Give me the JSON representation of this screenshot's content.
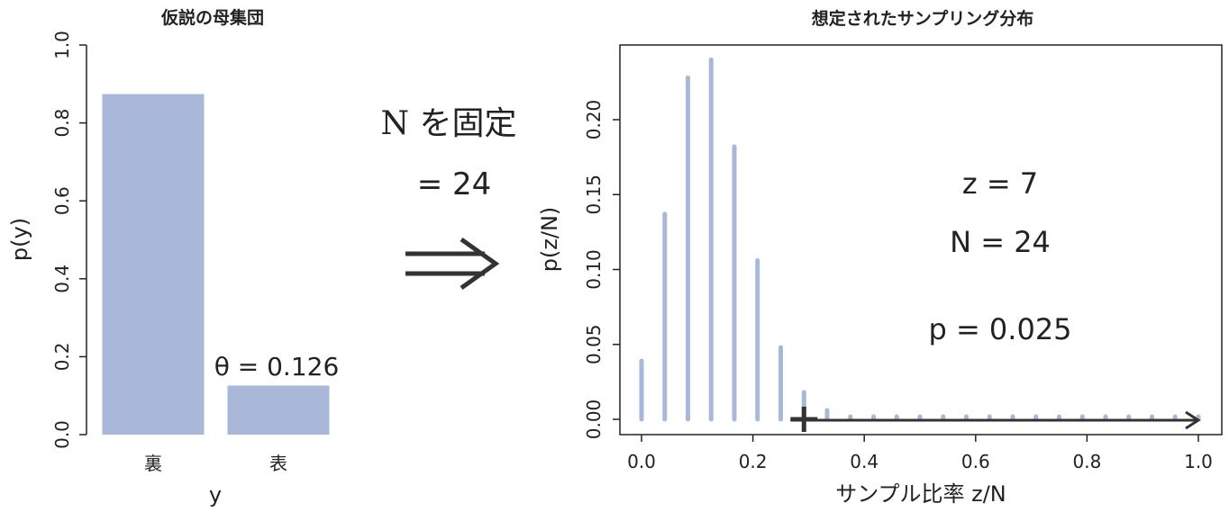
{
  "middle": {
    "line1": "N を固定",
    "line2": "= 24",
    "arrow_glyph": "⟹"
  },
  "chart_data": [
    {
      "type": "bar",
      "title": "仮説の母集団",
      "xlabel": "y",
      "ylabel": "p(y)",
      "categories": [
        "裏",
        "表"
      ],
      "values": [
        0.874,
        0.126
      ],
      "ylim": [
        0,
        1
      ],
      "yticks": [
        "0.0",
        "0.2",
        "0.4",
        "0.6",
        "0.8",
        "1.0"
      ],
      "annotation": "θ = 0.126",
      "bar_color": "#a9b8d8",
      "grid": false
    },
    {
      "type": "bar",
      "title": "想定されたサンプリング分布",
      "xlabel": "サンプル比率 z/N",
      "ylabel": "p(z/N)",
      "xlim": [
        0,
        1
      ],
      "ylim": [
        0,
        0.24
      ],
      "xticks": [
        "0.0",
        "0.2",
        "0.4",
        "0.6",
        "0.8",
        "1.0"
      ],
      "yticks": [
        "0.00",
        "0.05",
        "0.10",
        "0.15",
        "0.20"
      ],
      "x": [
        0.0,
        0.0417,
        0.0833,
        0.125,
        0.1667,
        0.2083,
        0.25,
        0.2917,
        0.3333,
        0.375,
        0.4167,
        0.4583,
        0.5,
        0.5417,
        0.5833,
        0.625,
        0.6667,
        0.7083,
        0.75,
        0.7917,
        0.8333,
        0.875,
        0.9167,
        0.9583,
        1.0
      ],
      "values": [
        0.039,
        0.137,
        0.228,
        0.24,
        0.182,
        0.106,
        0.048,
        0.018,
        0.006,
        0.0015,
        0.0003,
        0,
        0,
        0,
        0,
        0,
        0,
        0,
        0,
        0,
        0,
        0,
        0,
        0,
        0
      ],
      "observed_marker": 0.2917,
      "annotations": [
        "z = 7",
        "N = 24",
        "p = 0.025"
      ],
      "bar_color": "#a9b8d8",
      "grid": false
    }
  ]
}
